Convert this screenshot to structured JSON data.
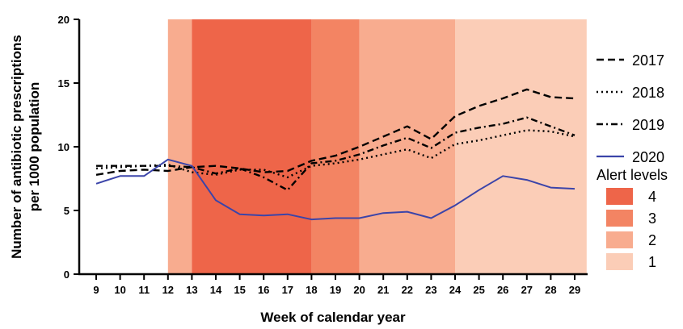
{
  "chart_data": {
    "type": "line",
    "xlabel": "Week of calendar year",
    "ylabel_lines": [
      "Number of antibiotic prescriptions",
      "per 1000 population"
    ],
    "x": [
      9,
      10,
      11,
      12,
      13,
      14,
      15,
      16,
      17,
      18,
      19,
      20,
      21,
      22,
      23,
      24,
      25,
      26,
      27,
      28,
      29
    ],
    "xlim": [
      9,
      29
    ],
    "ylim": [
      0,
      20
    ],
    "yticks": [
      0,
      5,
      10,
      15,
      20
    ],
    "grid": false,
    "legend_position": "right",
    "series": [
      {
        "name": "2017",
        "style": "dashed",
        "color": "#000000",
        "values": [
          7.8,
          8.1,
          8.2,
          8.1,
          8.4,
          8.5,
          8.3,
          8.0,
          8.1,
          8.9,
          9.3,
          10.0,
          10.8,
          11.6,
          10.6,
          12.4,
          13.2,
          13.8,
          14.5,
          13.9,
          13.8
        ]
      },
      {
        "name": "2018",
        "style": "dotted",
        "color": "#000000",
        "values": [
          8.3,
          8.4,
          8.5,
          8.6,
          8.0,
          7.8,
          8.2,
          8.2,
          7.6,
          8.5,
          8.7,
          9.0,
          9.4,
          9.8,
          9.1,
          10.2,
          10.5,
          10.9,
          11.3,
          11.2,
          10.8
        ]
      },
      {
        "name": "2019",
        "style": "dashdot",
        "color": "#000000",
        "values": [
          8.5,
          8.5,
          8.5,
          8.5,
          8.4,
          7.9,
          8.3,
          7.6,
          6.6,
          8.7,
          8.9,
          9.4,
          10.1,
          10.7,
          9.9,
          11.1,
          11.5,
          11.8,
          12.3,
          11.6,
          10.9
        ]
      },
      {
        "name": "2020",
        "style": "solid",
        "color": "#3b44a9",
        "values": [
          7.1,
          7.7,
          7.7,
          9.0,
          8.5,
          5.8,
          4.7,
          4.6,
          4.7,
          4.3,
          4.4,
          4.4,
          4.8,
          4.9,
          4.4,
          5.4,
          6.6,
          7.7,
          7.4,
          6.8,
          6.7
        ]
      }
    ],
    "alert_levels": {
      "title": "Alert levels",
      "entries": [
        {
          "label": "4",
          "color": "#ee6549"
        },
        {
          "label": "3",
          "color": "#f38463"
        },
        {
          "label": "2",
          "color": "#f8ac8f"
        },
        {
          "label": "1",
          "color": "#fbcdb7"
        }
      ],
      "bands": [
        {
          "from": 12,
          "to": 13,
          "level": "2"
        },
        {
          "from": 13,
          "to": 18,
          "level": "4"
        },
        {
          "from": 18,
          "to": 20,
          "level": "3"
        },
        {
          "from": 20,
          "to": 24,
          "level": "2"
        },
        {
          "from": 24,
          "to": 29.5,
          "level": "1"
        }
      ]
    }
  }
}
